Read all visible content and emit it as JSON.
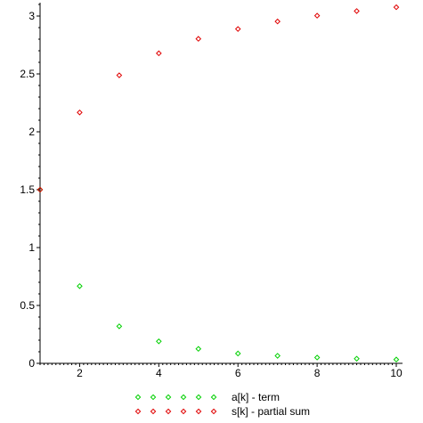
{
  "chart_data": {
    "type": "scatter",
    "title": "",
    "xlabel": "",
    "ylabel": "",
    "xlim": [
      1,
      10
    ],
    "ylim": [
      0,
      3.1
    ],
    "x_ticks": [
      2,
      4,
      6,
      8,
      10
    ],
    "x_tick_labels": [
      "2",
      "4",
      "6",
      "8",
      "10"
    ],
    "y_ticks": [
      0,
      0.5,
      1,
      1.5,
      2,
      2.5,
      3
    ],
    "y_tick_labels": [
      "0",
      "0.5",
      "1",
      "1.5",
      "2",
      "2.5",
      "3"
    ],
    "grid": false,
    "legend_position": "bottom",
    "marker": "diamond",
    "series": [
      {
        "name": "a[k] - term",
        "color": "#00d000",
        "x": [
          1,
          2,
          3,
          4,
          5,
          6,
          7,
          8,
          9,
          10
        ],
        "y": [
          1.5,
          0.667,
          0.32,
          0.19,
          0.125,
          0.085,
          0.065,
          0.05,
          0.04,
          0.033
        ]
      },
      {
        "name": "s[k] - partial sum",
        "color": "#e00000",
        "x": [
          1,
          2,
          3,
          4,
          5,
          6,
          7,
          8,
          9,
          10
        ],
        "y": [
          1.5,
          2.167,
          2.488,
          2.678,
          2.803,
          2.888,
          2.953,
          3.003,
          3.043,
          3.076
        ]
      }
    ]
  }
}
